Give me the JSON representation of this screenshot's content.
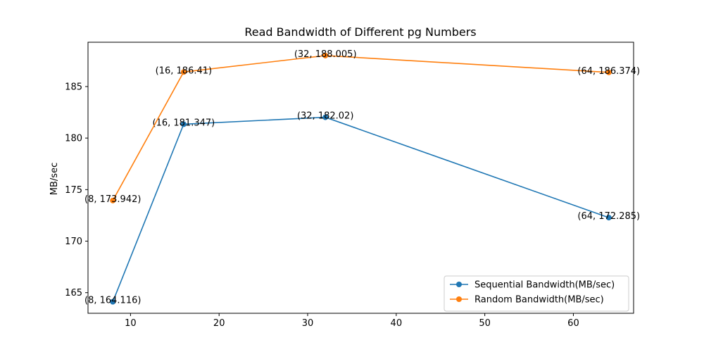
{
  "chart_data": {
    "type": "line",
    "title": "Read Bandwidth of Different pg Numbers",
    "xlabel": "",
    "ylabel": "MB/sec",
    "xlim": [
      5.2,
      66.8
    ],
    "ylim": [
      163.0,
      189.3
    ],
    "xticks": [
      10,
      20,
      30,
      40,
      50,
      60
    ],
    "yticks": [
      165,
      170,
      175,
      180,
      185
    ],
    "grid": false,
    "legend_position": "lower-right",
    "series": [
      {
        "name": "Sequential Bandwidth(MB/sec)",
        "color": "#1f77b4",
        "x": [
          8,
          16,
          32,
          64
        ],
        "y": [
          164.116,
          181.347,
          182.02,
          172.285
        ],
        "labels": [
          "(8, 164.116)",
          "(16, 181.347)",
          "(32, 182.02)",
          "(64, 172.285)"
        ]
      },
      {
        "name": "Random Bandwidth(MB/sec)",
        "color": "#ff7f0e",
        "x": [
          8,
          16,
          32,
          64
        ],
        "y": [
          173.942,
          186.41,
          188.005,
          186.374
        ],
        "labels": [
          "(8, 173.942)",
          "(16, 186.41)",
          "(32, 188.005)",
          "(64, 186.374)"
        ]
      }
    ]
  }
}
